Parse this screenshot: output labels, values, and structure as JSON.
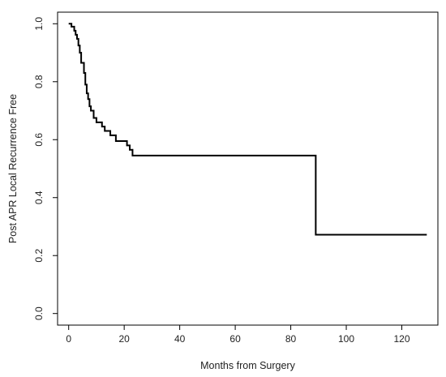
{
  "chart_data": {
    "type": "line",
    "title": "",
    "xlabel": "Months from Surgery",
    "ylabel": "Post APR Local Recurrence Free",
    "xlim": [
      -4,
      133
    ],
    "ylim": [
      -0.04,
      1.04
    ],
    "xticks": [
      0,
      20,
      40,
      60,
      80,
      100,
      120
    ],
    "yticks": [
      0.0,
      0.2,
      0.4,
      0.6,
      0.8,
      1.0
    ],
    "xtick_labels": [
      "0",
      "20",
      "40",
      "60",
      "80",
      "100",
      "120"
    ],
    "ytick_labels": [
      "0.0",
      "0.2",
      "0.4",
      "0.6",
      "0.8",
      "1.0"
    ],
    "grid": false,
    "legend": "none",
    "line_color": "#000000",
    "series": [
      {
        "step": "post",
        "x": [
          0,
          1,
          2,
          2.5,
          3,
          3.5,
          4,
          4.5,
          5,
          5.5,
          6,
          6.5,
          7,
          7.5,
          8,
          9,
          10,
          11,
          12,
          13,
          15,
          17,
          21,
          22,
          23,
          89,
          129
        ],
        "y": [
          1.0,
          0.99,
          0.976,
          0.962,
          0.948,
          0.925,
          0.9,
          0.865,
          0.865,
          0.83,
          0.79,
          0.76,
          0.74,
          0.715,
          0.7,
          0.675,
          0.66,
          0.66,
          0.645,
          0.63,
          0.615,
          0.595,
          0.58,
          0.565,
          0.545,
          0.272,
          0.272
        ]
      }
    ]
  }
}
